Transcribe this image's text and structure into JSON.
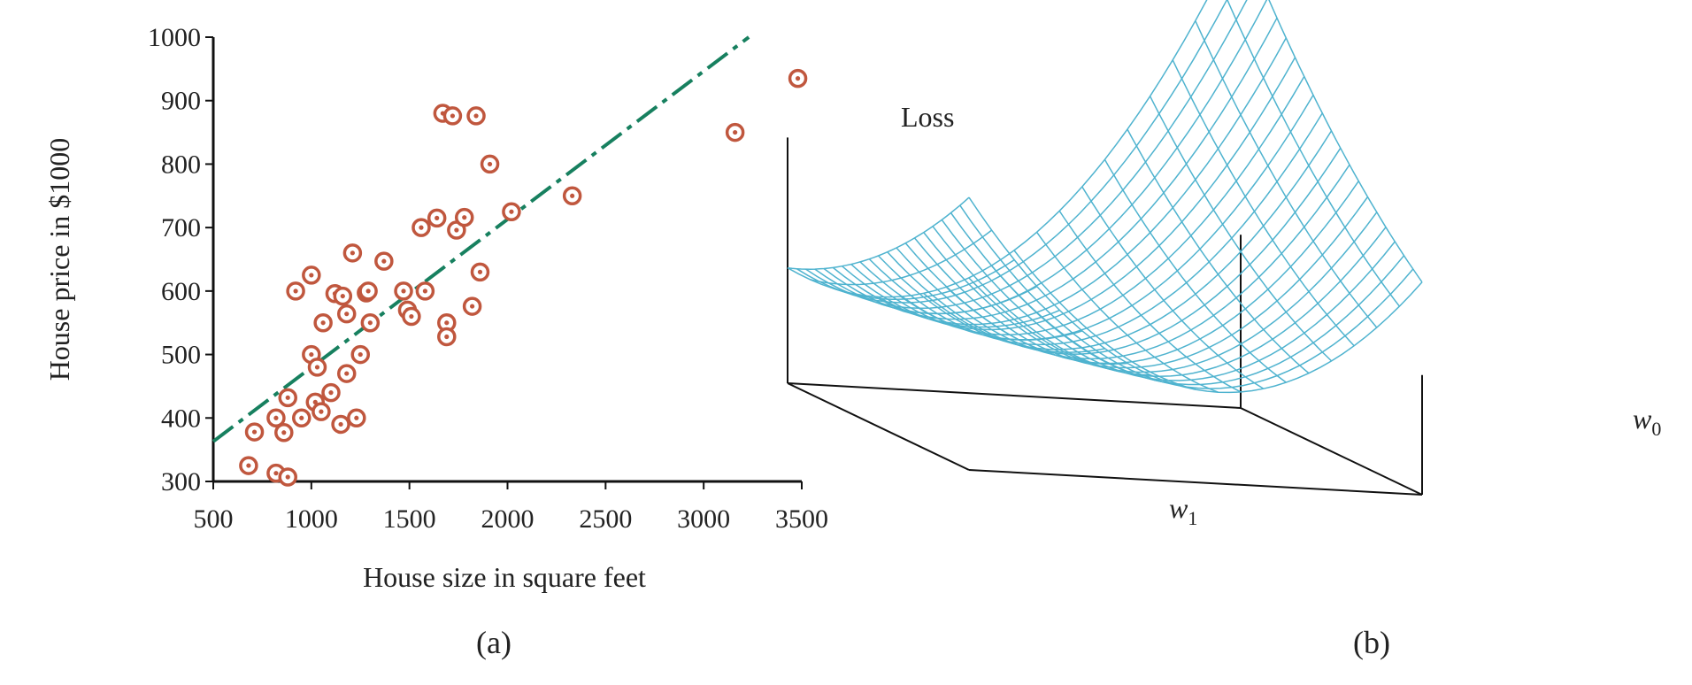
{
  "chart_data": [
    {
      "type": "scatter",
      "panel_label": "(a)",
      "xlabel": "House size in square feet",
      "ylabel": "House price in $1000",
      "xlim": [
        500,
        3500
      ],
      "ylim": [
        300,
        1000
      ],
      "x_ticks": [
        "500",
        "1000",
        "1500",
        "2000",
        "2500",
        "3000",
        "3500"
      ],
      "y_ticks": [
        "300",
        "400",
        "500",
        "600",
        "700",
        "800",
        "900",
        "1000"
      ],
      "grid": false,
      "marker_color": "#c0573e",
      "points": [
        {
          "x": 680,
          "y": 325
        },
        {
          "x": 710,
          "y": 378
        },
        {
          "x": 820,
          "y": 313
        },
        {
          "x": 820,
          "y": 400
        },
        {
          "x": 860,
          "y": 377
        },
        {
          "x": 880,
          "y": 307
        },
        {
          "x": 880,
          "y": 432
        },
        {
          "x": 920,
          "y": 600
        },
        {
          "x": 950,
          "y": 400
        },
        {
          "x": 1000,
          "y": 500
        },
        {
          "x": 1000,
          "y": 625
        },
        {
          "x": 1020,
          "y": 425
        },
        {
          "x": 1030,
          "y": 480
        },
        {
          "x": 1050,
          "y": 410
        },
        {
          "x": 1060,
          "y": 550
        },
        {
          "x": 1100,
          "y": 440
        },
        {
          "x": 1120,
          "y": 596
        },
        {
          "x": 1150,
          "y": 390
        },
        {
          "x": 1160,
          "y": 592
        },
        {
          "x": 1180,
          "y": 470
        },
        {
          "x": 1180,
          "y": 564
        },
        {
          "x": 1210,
          "y": 660
        },
        {
          "x": 1230,
          "y": 400
        },
        {
          "x": 1250,
          "y": 500
        },
        {
          "x": 1280,
          "y": 597
        },
        {
          "x": 1290,
          "y": 600
        },
        {
          "x": 1300,
          "y": 550
        },
        {
          "x": 1370,
          "y": 647
        },
        {
          "x": 1470,
          "y": 600
        },
        {
          "x": 1490,
          "y": 570
        },
        {
          "x": 1510,
          "y": 560
        },
        {
          "x": 1560,
          "y": 700
        },
        {
          "x": 1580,
          "y": 600
        },
        {
          "x": 1640,
          "y": 715
        },
        {
          "x": 1670,
          "y": 880
        },
        {
          "x": 1690,
          "y": 550
        },
        {
          "x": 1690,
          "y": 528
        },
        {
          "x": 1720,
          "y": 876
        },
        {
          "x": 1740,
          "y": 696
        },
        {
          "x": 1780,
          "y": 716
        },
        {
          "x": 1820,
          "y": 576
        },
        {
          "x": 1840,
          "y": 876
        },
        {
          "x": 1860,
          "y": 630
        },
        {
          "x": 1910,
          "y": 800
        },
        {
          "x": 2020,
          "y": 725
        },
        {
          "x": 2330,
          "y": 750
        },
        {
          "x": 3160,
          "y": 850
        },
        {
          "x": 3480,
          "y": 935
        }
      ],
      "fit_line": {
        "style": "dash-dot",
        "color": "#17805f",
        "from": {
          "x": 500,
          "y": 363
        },
        "to": {
          "x": 3230,
          "y": 1000
        }
      }
    },
    {
      "type": "surface",
      "panel_label": "(b)",
      "zlabel": "Loss",
      "xlabel": "w",
      "xlabel_subscript": "1",
      "ylabel": "w",
      "ylabel_subscript": "0",
      "mesh_color": "#4fb3cf",
      "mesh_lines": 21
    }
  ]
}
